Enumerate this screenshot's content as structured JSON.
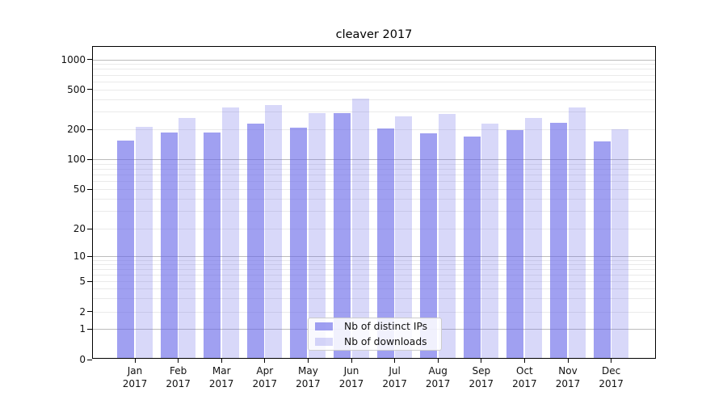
{
  "figure": {
    "background": "#ffffff"
  },
  "chart_data": {
    "type": "bar",
    "title": "cleaver 2017",
    "x_categories": [
      "Jan",
      "Feb",
      "Mar",
      "Apr",
      "May",
      "Jun",
      "Jul",
      "Aug",
      "Sep",
      "Oct",
      "Nov",
      "Dec"
    ],
    "x_year_label": "2017",
    "series": [
      {
        "name": "Nb of distinct IPs",
        "base_color": "#6565e9",
        "alpha": 0.62,
        "rendered_color": "#a0a0f1",
        "values": [
          153,
          185,
          184,
          229,
          207,
          290,
          204,
          182,
          169,
          196,
          231,
          152
        ]
      },
      {
        "name": "Nb of downloads",
        "base_color": "#6565e9",
        "alpha": 0.25,
        "rendered_color": "#d9d9f9",
        "values": [
          213,
          257,
          331,
          347,
          292,
          401,
          270,
          285,
          226,
          258,
          327,
          199
        ]
      }
    ],
    "xlabel": "",
    "ylabel": "",
    "y_scale": "symlog",
    "y_ticks": [
      0,
      1,
      2,
      5,
      10,
      20,
      50,
      100,
      200,
      500,
      1000
    ],
    "ylim": [
      0,
      1400
    ],
    "grid": {
      "enabled": true,
      "major_at": [
        1,
        10,
        100,
        1000
      ],
      "major_color": "#bcbcbc",
      "minor_color": "#eaeaea"
    },
    "legend": {
      "position": "lower center-left inside plot",
      "entries": [
        "Nb of distinct IPs",
        "Nb of downloads"
      ]
    }
  }
}
